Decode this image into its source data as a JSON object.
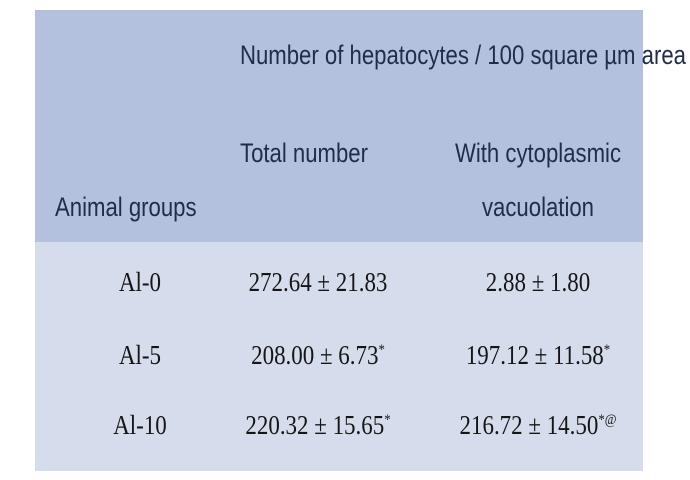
{
  "header": {
    "group_heading": "Number of hepatocytes / 100 square µm area",
    "row_label_heading": "Animal groups",
    "col1_heading": "Total number",
    "col2_heading_line1": "With cytoplasmic",
    "col2_heading_line2": "vacuolation"
  },
  "rows": [
    {
      "group": "Al-0",
      "total": "272.64 ± 21.83",
      "total_mark": "",
      "vacuolation": "2.88 ± 1.80",
      "vacuolation_mark": ""
    },
    {
      "group": "Al-5",
      "total": "208.00 ± 6.73",
      "total_mark": "*",
      "vacuolation": "197.12 ± 11.58",
      "vacuolation_mark": "*"
    },
    {
      "group": "Al-10",
      "total": "220.32 ± 15.65",
      "total_mark": "*",
      "vacuolation": "216.72 ± 14.50",
      "vacuolation_mark": "*@"
    }
  ],
  "colors": {
    "header_bg": "#b3c0de",
    "body_bg": "#d5dded"
  }
}
